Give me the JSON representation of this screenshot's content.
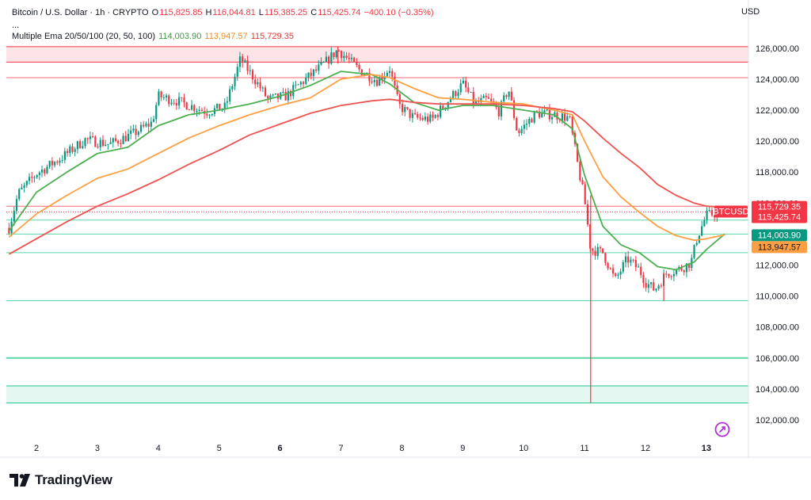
{
  "legend": {
    "symbol": "Bitcoin / U.S. Dollar · 1h · CRYPTO",
    "o_label": "O",
    "o_value": "115,825.85",
    "h_label": "H",
    "h_value": "116,044.81",
    "l_label": "L",
    "l_value": "115,385.25",
    "c_label": "C",
    "c_value": "115,425.74",
    "change": "−400.10 (−0.35%)",
    "dots": "...",
    "ema_name": "Multiple Ema 20/50/100 (20, 50, 100)",
    "ema20_value": "114,003.90",
    "ema50_value": "113,947.57",
    "ema100_value": "115,729.35"
  },
  "currency": "USD",
  "brand": {
    "name": "TradingView"
  },
  "colors": {
    "up": "#089981",
    "down": "#f23645",
    "ema20": "#4caf50",
    "ema50": "#ff9f43",
    "ema100": "#ef5350",
    "resistance": "#f23645",
    "support": "#22c98a"
  },
  "chart_data": {
    "type": "candlestick",
    "symbol": "BTCUSD",
    "timeframe": "1h",
    "x_ticks": [
      "2",
      "3",
      "4",
      "5",
      "6",
      "7",
      "8",
      "9",
      "10",
      "11",
      "12",
      "13"
    ],
    "y_ticks": [
      "126,000.00",
      "124,000.00",
      "122,000.00",
      "120,000.00",
      "118,000.00",
      "116,000.00",
      "114,000.00",
      "112,000.00",
      "110,000.00",
      "108,000.00",
      "106,000.00",
      "104,000.00",
      "102,000.00"
    ],
    "ylim": [
      101000,
      127000
    ],
    "price_path": [
      {
        "day": 1.55,
        "price": 114400
      },
      {
        "day": 1.7,
        "price": 116600
      },
      {
        "day": 2.0,
        "price": 117900
      },
      {
        "day": 2.4,
        "price": 118900
      },
      {
        "day": 2.8,
        "price": 120100
      },
      {
        "day": 3.2,
        "price": 119800
      },
      {
        "day": 3.6,
        "price": 120500
      },
      {
        "day": 3.9,
        "price": 121200
      },
      {
        "day": 4.0,
        "price": 122900
      },
      {
        "day": 4.3,
        "price": 122600
      },
      {
        "day": 4.8,
        "price": 121900
      },
      {
        "day": 5.1,
        "price": 122200
      },
      {
        "day": 5.35,
        "price": 125300
      },
      {
        "day": 5.6,
        "price": 123900
      },
      {
        "day": 5.8,
        "price": 122700
      },
      {
        "day": 6.1,
        "price": 122900
      },
      {
        "day": 6.3,
        "price": 123600
      },
      {
        "day": 6.7,
        "price": 124900
      },
      {
        "day": 6.95,
        "price": 125900
      },
      {
        "day": 7.3,
        "price": 124600
      },
      {
        "day": 7.6,
        "price": 123900
      },
      {
        "day": 7.8,
        "price": 124700
      },
      {
        "day": 7.95,
        "price": 122300
      },
      {
        "day": 8.2,
        "price": 121500
      },
      {
        "day": 8.5,
        "price": 121400
      },
      {
        "day": 8.8,
        "price": 122800
      },
      {
        "day": 9.0,
        "price": 123700
      },
      {
        "day": 9.2,
        "price": 122400
      },
      {
        "day": 9.4,
        "price": 122700
      },
      {
        "day": 9.6,
        "price": 121900
      },
      {
        "day": 9.75,
        "price": 123400
      },
      {
        "day": 9.9,
        "price": 120500
      },
      {
        "day": 10.2,
        "price": 121800
      },
      {
        "day": 10.5,
        "price": 121700
      },
      {
        "day": 10.75,
        "price": 121500
      },
      {
        "day": 10.9,
        "price": 118200
      },
      {
        "day": 11.0,
        "price": 116200
      },
      {
        "day": 11.1,
        "price": 113000
      },
      {
        "day": 11.3,
        "price": 112800
      },
      {
        "day": 11.5,
        "price": 111000
      },
      {
        "day": 11.7,
        "price": 112400
      },
      {
        "day": 11.9,
        "price": 111700
      },
      {
        "day": 12.0,
        "price": 110900
      },
      {
        "day": 12.15,
        "price": 110400
      },
      {
        "day": 12.35,
        "price": 111500
      },
      {
        "day": 12.6,
        "price": 111800
      },
      {
        "day": 12.75,
        "price": 112200
      },
      {
        "day": 12.85,
        "price": 113800
      },
      {
        "day": 13.0,
        "price": 115200
      },
      {
        "day": 13.25,
        "price": 115430
      }
    ],
    "wicks": [
      {
        "day": 11.1,
        "low": 103100,
        "high": 116500
      },
      {
        "day": 6.95,
        "low": 125000,
        "high": 126100
      },
      {
        "day": 12.3,
        "low": 109700,
        "high": 111500
      }
    ],
    "series": [
      {
        "name": "EMA 20",
        "last_value": 114003.9,
        "points": [
          [
            1.55,
            114200
          ],
          [
            2.0,
            116700
          ],
          [
            2.5,
            118000
          ],
          [
            3.0,
            119200
          ],
          [
            3.5,
            119600
          ],
          [
            4.0,
            121000
          ],
          [
            4.5,
            121700
          ],
          [
            5.0,
            122000
          ],
          [
            5.5,
            122400
          ],
          [
            6.0,
            122900
          ],
          [
            6.5,
            123600
          ],
          [
            7.0,
            124500
          ],
          [
            7.5,
            124300
          ],
          [
            7.8,
            123700
          ],
          [
            8.2,
            122500
          ],
          [
            8.6,
            122000
          ],
          [
            9.0,
            122300
          ],
          [
            9.5,
            122300
          ],
          [
            10.0,
            122000
          ],
          [
            10.5,
            121700
          ],
          [
            10.8,
            120800
          ],
          [
            11.0,
            117800
          ],
          [
            11.3,
            114500
          ],
          [
            11.6,
            113300
          ],
          [
            11.9,
            112800
          ],
          [
            12.2,
            111900
          ],
          [
            12.5,
            111700
          ],
          [
            12.8,
            112200
          ],
          [
            13.0,
            113000
          ],
          [
            13.3,
            114003.9
          ]
        ]
      },
      {
        "name": "EMA 50",
        "last_value": 113947.57,
        "points": [
          [
            1.55,
            113800
          ],
          [
            2.0,
            115300
          ],
          [
            2.5,
            116500
          ],
          [
            3.0,
            117600
          ],
          [
            3.5,
            118200
          ],
          [
            4.0,
            119200
          ],
          [
            4.5,
            120200
          ],
          [
            5.0,
            121000
          ],
          [
            5.5,
            121700
          ],
          [
            6.0,
            122300
          ],
          [
            6.5,
            122800
          ],
          [
            7.0,
            124000
          ],
          [
            7.5,
            124300
          ],
          [
            7.8,
            124100
          ],
          [
            8.2,
            123400
          ],
          [
            8.6,
            122800
          ],
          [
            9.0,
            122700
          ],
          [
            9.5,
            122500
          ],
          [
            10.0,
            122400
          ],
          [
            10.5,
            122000
          ],
          [
            10.8,
            121700
          ],
          [
            11.0,
            120000
          ],
          [
            11.3,
            117700
          ],
          [
            11.6,
            116400
          ],
          [
            11.9,
            115400
          ],
          [
            12.2,
            114500
          ],
          [
            12.5,
            113900
          ],
          [
            12.8,
            113600
          ],
          [
            13.0,
            113700
          ],
          [
            13.3,
            113947.57
          ]
        ]
      },
      {
        "name": "EMA 100",
        "last_value": 115729.35,
        "points": [
          [
            1.55,
            112700
          ],
          [
            2.0,
            113700
          ],
          [
            2.5,
            114800
          ],
          [
            3.0,
            115800
          ],
          [
            3.5,
            116600
          ],
          [
            4.0,
            117500
          ],
          [
            4.5,
            118500
          ],
          [
            5.0,
            119400
          ],
          [
            5.5,
            120400
          ],
          [
            6.0,
            121100
          ],
          [
            6.5,
            121800
          ],
          [
            7.0,
            122300
          ],
          [
            7.5,
            122600
          ],
          [
            7.8,
            122700
          ],
          [
            8.2,
            122500
          ],
          [
            8.6,
            122400
          ],
          [
            9.0,
            122400
          ],
          [
            9.5,
            122400
          ],
          [
            10.0,
            122300
          ],
          [
            10.5,
            122100
          ],
          [
            10.8,
            121900
          ],
          [
            11.0,
            121300
          ],
          [
            11.3,
            120200
          ],
          [
            11.6,
            119200
          ],
          [
            11.9,
            118300
          ],
          [
            12.2,
            117200
          ],
          [
            12.5,
            116500
          ],
          [
            12.8,
            116000
          ],
          [
            13.0,
            115800
          ],
          [
            13.3,
            115729.35
          ]
        ]
      }
    ],
    "levels": [
      {
        "kind": "resistance_zone",
        "from": 125100,
        "to": 126100
      },
      {
        "kind": "resistance",
        "price": 124100
      },
      {
        "kind": "resistance",
        "price": 115800
      },
      {
        "kind": "support",
        "price": 114900
      },
      {
        "kind": "support",
        "price": 114000
      },
      {
        "kind": "support",
        "price": 112800
      },
      {
        "kind": "support",
        "price": 109700
      },
      {
        "kind": "support",
        "price": 106000
      },
      {
        "kind": "support_zone",
        "from": 103100,
        "to": 104200
      }
    ],
    "current_price": 115425.74,
    "price_tags": [
      {
        "text": "115,729.35",
        "value": 115729.35,
        "color": "#f23645"
      },
      {
        "text": "BTCUSD",
        "value": 115425.74,
        "color": "#f23645"
      },
      {
        "text": "115,425.74",
        "value": 115425.74,
        "color": "#f23645"
      },
      {
        "text": "114,003.90",
        "value": 114003.9,
        "color": "#089981"
      },
      {
        "text": "113,947.57",
        "value": 113947.57,
        "color": "#ff9f43"
      }
    ]
  }
}
